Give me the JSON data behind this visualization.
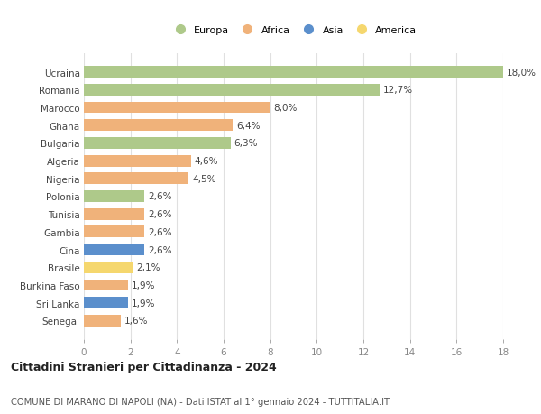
{
  "countries": [
    "Ucraina",
    "Romania",
    "Marocco",
    "Ghana",
    "Bulgaria",
    "Algeria",
    "Nigeria",
    "Polonia",
    "Tunisia",
    "Gambia",
    "Cina",
    "Brasile",
    "Burkina Faso",
    "Sri Lanka",
    "Senegal"
  ],
  "values": [
    18.0,
    12.7,
    8.0,
    6.4,
    6.3,
    4.6,
    4.5,
    2.6,
    2.6,
    2.6,
    2.6,
    2.1,
    1.9,
    1.9,
    1.6
  ],
  "labels": [
    "18,0%",
    "12,7%",
    "8,0%",
    "6,4%",
    "6,3%",
    "4,6%",
    "4,5%",
    "2,6%",
    "2,6%",
    "2,6%",
    "2,6%",
    "2,1%",
    "1,9%",
    "1,9%",
    "1,6%"
  ],
  "continents": [
    "Europa",
    "Europa",
    "Africa",
    "Africa",
    "Europa",
    "Africa",
    "Africa",
    "Europa",
    "Africa",
    "Africa",
    "Asia",
    "America",
    "Africa",
    "Asia",
    "Africa"
  ],
  "continent_colors": {
    "Europa": "#aec98a",
    "Africa": "#f0b27a",
    "Asia": "#5b8fcc",
    "America": "#f5d76e"
  },
  "legend_order": [
    "Europa",
    "Africa",
    "Asia",
    "America"
  ],
  "legend_colors": [
    "#aec98a",
    "#f0b27a",
    "#5b8fcc",
    "#f5d76e"
  ],
  "xlim": [
    0,
    18
  ],
  "xticks": [
    0,
    2,
    4,
    6,
    8,
    10,
    12,
    14,
    16,
    18
  ],
  "title1": "Cittadini Stranieri per Cittadinanza - 2024",
  "title2": "COMUNE DI MARANO DI NAPOLI (NA) - Dati ISTAT al 1° gennaio 2024 - TUTTITALIA.IT",
  "background_color": "#ffffff",
  "grid_color": "#e0e0e0",
  "bar_height": 0.65,
  "label_fontsize": 7.5,
  "ylabel_fontsize": 7.5,
  "xtick_fontsize": 7.5,
  "title1_fontsize": 9,
  "title2_fontsize": 7.2,
  "legend_fontsize": 8
}
